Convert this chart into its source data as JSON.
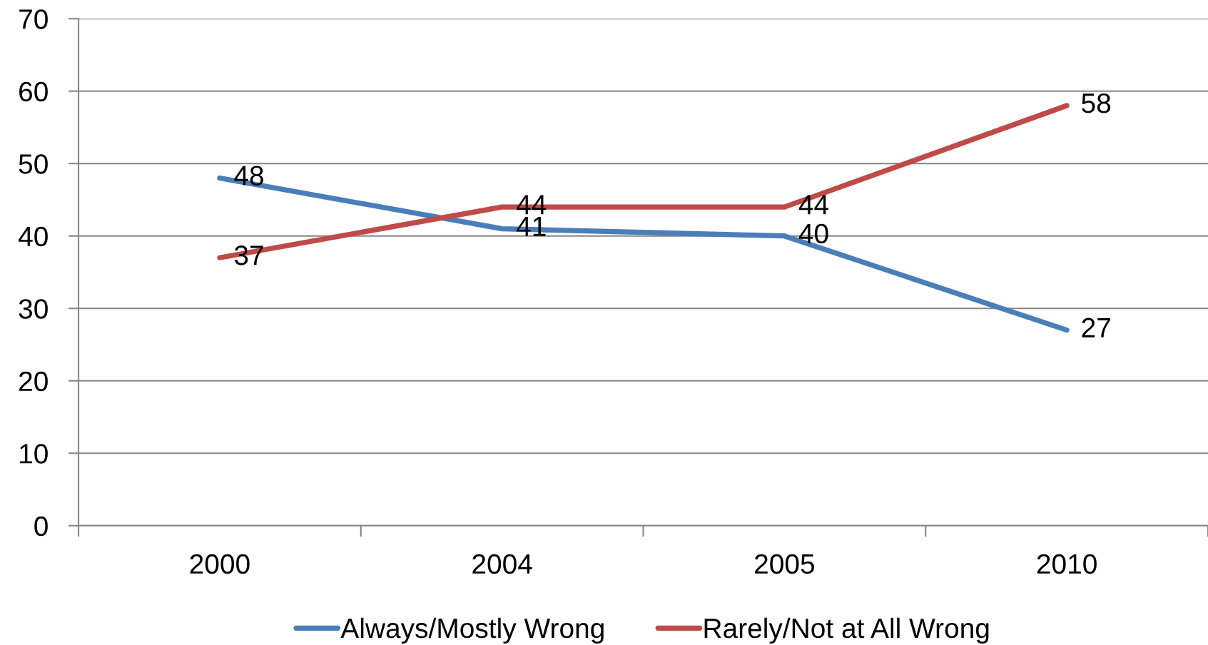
{
  "chart_data": {
    "type": "line",
    "categories": [
      "2000",
      "2004",
      "2005",
      "2010"
    ],
    "series": [
      {
        "name": "Always/Mostly Wrong",
        "color": "#4a7ebb",
        "values": [
          48,
          41,
          40,
          27
        ]
      },
      {
        "name": "Rarely/Not at All Wrong",
        "color": "#be4b48",
        "values": [
          37,
          44,
          44,
          58
        ]
      }
    ],
    "ylim": [
      0,
      70
    ],
    "yticks": [
      0,
      10,
      20,
      30,
      40,
      50,
      60,
      70
    ],
    "grid": "y",
    "legend": "bottom",
    "data_labels": true
  }
}
